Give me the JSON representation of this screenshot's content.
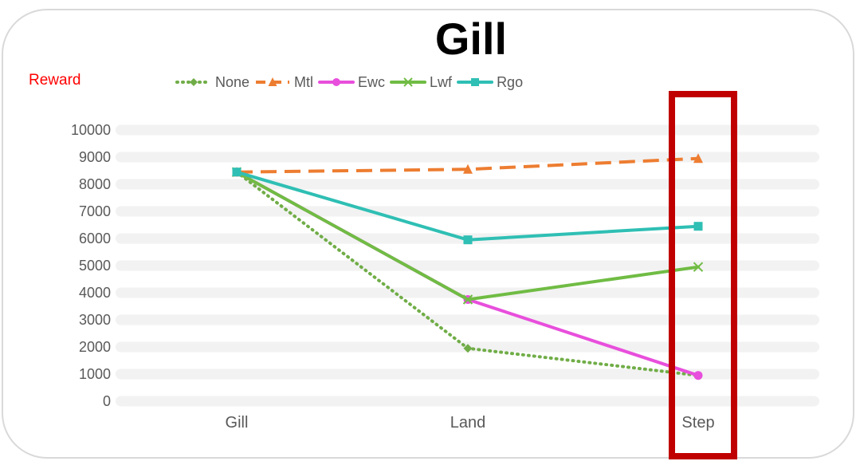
{
  "chart_data": {
    "type": "line",
    "title": "Gill",
    "ylabel": "Reward",
    "xlabel": "",
    "categories": [
      "Gill",
      "Land",
      "Step"
    ],
    "ylim": [
      0,
      10000
    ],
    "yticks": [
      0,
      1000,
      2000,
      3000,
      4000,
      5000,
      6000,
      7000,
      8000,
      9000,
      10000
    ],
    "grid": true,
    "legend_position": "top",
    "series": [
      {
        "name": "None",
        "values": [
          8450,
          1950,
          950
        ],
        "color": "#70ad47",
        "dash": "dotted",
        "marker": "diamond"
      },
      {
        "name": "Mtl",
        "values": [
          8450,
          8550,
          8950
        ],
        "color": "#ed7d31",
        "dash": "dashed",
        "marker": "triangle"
      },
      {
        "name": "Ewc",
        "values": [
          8450,
          3750,
          950
        ],
        "color": "#e84fdc",
        "dash": "solid",
        "marker": "circle"
      },
      {
        "name": "Lwf",
        "values": [
          8450,
          3750,
          4950
        ],
        "color": "#70bc44",
        "dash": "solid",
        "marker": "x"
      },
      {
        "name": "Rgo",
        "values": [
          8450,
          5950,
          6450
        ],
        "color": "#2fbfb4",
        "dash": "solid",
        "marker": "square"
      }
    ],
    "highlight": {
      "category": "Step",
      "color": "#c00000"
    }
  },
  "colors": {
    "frame_border": "#d9d9d9",
    "ylabel": "#ff0000",
    "axis_text": "#595959",
    "grid_band": "#f2f2f2"
  }
}
